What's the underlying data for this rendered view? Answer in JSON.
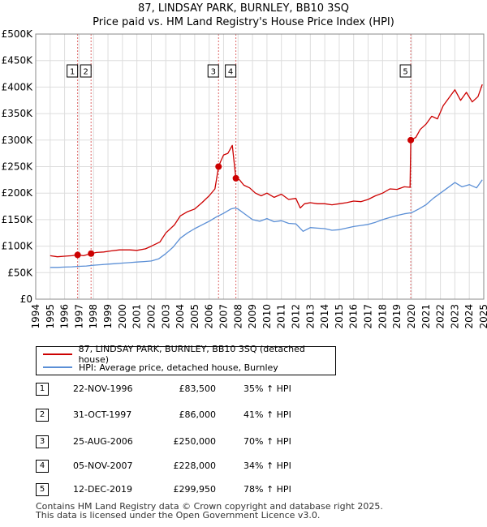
{
  "title_line1": "87, LINDSAY PARK, BURNLEY, BB10 3SQ",
  "title_line2": "Price paid vs. HM Land Registry's House Price Index (HPI)",
  "colors": {
    "price_paid": "#cc0000",
    "hpi": "#5b8fd6",
    "grid": "#dddddd",
    "plot_bg": "#ffffff",
    "marker_line": "#dd6666"
  },
  "chart_data": {
    "type": "line",
    "xlim": [
      1994.0,
      2025.0
    ],
    "ylim": [
      0,
      500000
    ],
    "y_ticks": [
      0,
      50000,
      100000,
      150000,
      200000,
      250000,
      300000,
      350000,
      400000,
      450000,
      500000
    ],
    "y_tick_labels": [
      "£0",
      "£50K",
      "£100K",
      "£150K",
      "£200K",
      "£250K",
      "£300K",
      "£350K",
      "£400K",
      "£450K",
      "£500K"
    ],
    "x_ticks": [
      1994,
      1995,
      1996,
      1997,
      1998,
      1999,
      2000,
      2001,
      2002,
      2003,
      2004,
      2005,
      2006,
      2007,
      2008,
      2009,
      2010,
      2011,
      2012,
      2013,
      2014,
      2015,
      2016,
      2017,
      2018,
      2019,
      2020,
      2021,
      2022,
      2023,
      2024,
      2025
    ],
    "x_tick_labels": [
      "1994",
      "1995",
      "1996",
      "1997",
      "1998",
      "1999",
      "2000",
      "2001",
      "2002",
      "2003",
      "2004",
      "2005",
      "2006",
      "2007",
      "2008",
      "2009",
      "2010",
      "2011",
      "2012",
      "2013",
      "2014",
      "2015",
      "2016",
      "2017",
      "2018",
      "2019",
      "2020",
      "2021",
      "2022",
      "2023",
      "2024",
      "2025"
    ],
    "grid": true,
    "series": [
      {
        "name": "87, LINDSAY PARK, BURNLEY, BB10 3SQ (detached house)",
        "x": [
          1995.0,
          1995.5,
          1996.0,
          1996.5,
          1996.9,
          1997.3,
          1997.83,
          1998.2,
          1998.7,
          1999.2,
          1999.8,
          2000.5,
          2001.0,
          2001.6,
          2002.0,
          2002.6,
          2003.0,
          2003.6,
          2004.0,
          2004.5,
          2005.0,
          2005.5,
          2006.0,
          2006.4,
          2006.65,
          2006.8,
          2007.0,
          2007.3,
          2007.6,
          2007.85,
          2008.1,
          2008.4,
          2008.8,
          2009.2,
          2009.6,
          2010.0,
          2010.5,
          2011.0,
          2011.5,
          2012.0,
          2012.3,
          2012.6,
          2013.0,
          2013.5,
          2014.0,
          2014.5,
          2015.0,
          2015.5,
          2016.0,
          2016.5,
          2017.0,
          2017.5,
          2018.0,
          2018.5,
          2019.0,
          2019.5,
          2019.9,
          2019.95,
          2020.3,
          2020.6,
          2021.0,
          2021.4,
          2021.8,
          2022.2,
          2022.6,
          2023.0,
          2023.4,
          2023.8,
          2024.2,
          2024.6,
          2024.9
        ],
        "values": [
          82000,
          80000,
          81000,
          82000,
          83500,
          82000,
          86000,
          88000,
          89000,
          91000,
          93000,
          93000,
          92000,
          95000,
          100000,
          108000,
          125000,
          140000,
          157000,
          165000,
          170000,
          182000,
          195000,
          208000,
          250000,
          260000,
          272000,
          275000,
          290000,
          228000,
          225000,
          215000,
          210000,
          200000,
          195000,
          200000,
          192000,
          198000,
          188000,
          190000,
          172000,
          180000,
          182000,
          180000,
          180000,
          178000,
          180000,
          182000,
          185000,
          184000,
          188000,
          195000,
          200000,
          208000,
          207000,
          212000,
          211000,
          299950,
          305000,
          320000,
          330000,
          345000,
          340000,
          365000,
          380000,
          395000,
          375000,
          390000,
          372000,
          382000,
          405000
        ]
      },
      {
        "name": "HPI: Average price, detached house, Burnley",
        "x": [
          1995.0,
          1995.5,
          1996.0,
          1996.5,
          1997.0,
          1997.5,
          1998.0,
          1998.5,
          1999.0,
          1999.5,
          2000.0,
          2000.5,
          2001.0,
          2001.5,
          2002.0,
          2002.5,
          2003.0,
          2003.5,
          2004.0,
          2004.5,
          2005.0,
          2005.5,
          2006.0,
          2006.5,
          2007.0,
          2007.5,
          2007.8,
          2008.0,
          2008.5,
          2009.0,
          2009.5,
          2010.0,
          2010.5,
          2011.0,
          2011.5,
          2012.0,
          2012.5,
          2013.0,
          2013.5,
          2014.0,
          2014.5,
          2015.0,
          2015.5,
          2016.0,
          2016.5,
          2017.0,
          2017.5,
          2018.0,
          2018.5,
          2019.0,
          2019.5,
          2020.0,
          2020.5,
          2021.0,
          2021.5,
          2022.0,
          2022.5,
          2023.0,
          2023.5,
          2024.0,
          2024.5,
          2024.9
        ],
        "values": [
          60000,
          60000,
          60500,
          61000,
          62000,
          62500,
          64000,
          65000,
          66000,
          67000,
          68000,
          69000,
          70000,
          71000,
          72000,
          76000,
          86000,
          98000,
          115000,
          125000,
          133000,
          140000,
          147000,
          155000,
          162000,
          170000,
          172000,
          170000,
          160000,
          150000,
          147000,
          152000,
          146000,
          148000,
          143000,
          142000,
          128000,
          135000,
          134000,
          133000,
          130000,
          131000,
          134000,
          137000,
          139000,
          141000,
          145000,
          150000,
          154000,
          158000,
          161000,
          163000,
          170000,
          178000,
          190000,
          200000,
          210000,
          220000,
          212000,
          216000,
          210000,
          225000
        ]
      }
    ],
    "sales": [
      {
        "label": "1",
        "x": 1996.9,
        "price": 83500
      },
      {
        "label": "2",
        "x": 1997.83,
        "price": 86000
      },
      {
        "label": "3",
        "x": 2006.65,
        "price": 250000
      },
      {
        "label": "4",
        "x": 2007.85,
        "price": 228000
      },
      {
        "label": "5",
        "x": 2019.95,
        "price": 299950
      }
    ]
  },
  "legend": {
    "price_paid": "87, LINDSAY PARK, BURNLEY, BB10 3SQ (detached house)",
    "hpi": "HPI: Average price, detached house, Burnley"
  },
  "sales_table": [
    {
      "num": "1",
      "date": "22-NOV-1996",
      "price": "£83,500",
      "hpi": "35% ↑ HPI"
    },
    {
      "num": "2",
      "date": "31-OCT-1997",
      "price": "£86,000",
      "hpi": "41% ↑ HPI"
    },
    {
      "num": "3",
      "date": "25-AUG-2006",
      "price": "£250,000",
      "hpi": "70% ↑ HPI"
    },
    {
      "num": "4",
      "date": "05-NOV-2007",
      "price": "£228,000",
      "hpi": "34% ↑ HPI"
    },
    {
      "num": "5",
      "date": "12-DEC-2019",
      "price": "£299,950",
      "hpi": "78% ↑ HPI"
    }
  ],
  "footer_line1": "Contains HM Land Registry data © Crown copyright and database right 2025.",
  "footer_line2": "This data is licensed under the Open Government Licence v3.0."
}
